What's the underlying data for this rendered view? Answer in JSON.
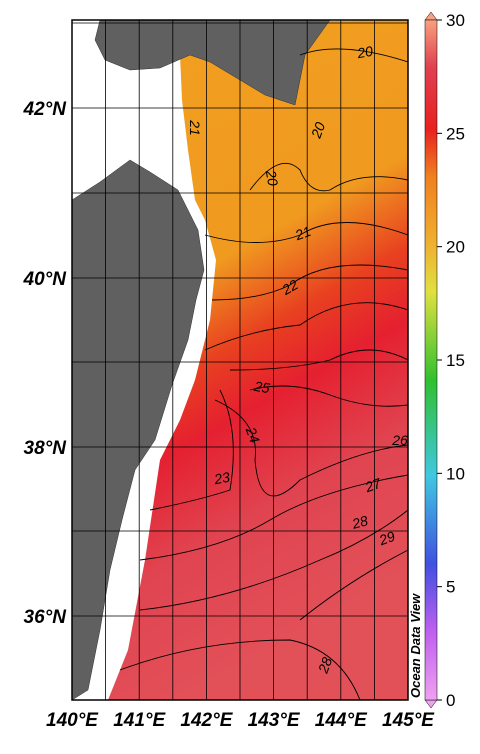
{
  "map": {
    "lon_labels": [
      "140°E",
      "141°E",
      "142°E",
      "143°E",
      "144°E",
      "145°E"
    ],
    "lat_labels": [
      "42°N",
      "40°N",
      "38°N",
      "36°N"
    ],
    "colorbar": {
      "range": [
        0,
        30
      ],
      "ticks": [
        0,
        5,
        10,
        15,
        20,
        25,
        30
      ]
    },
    "contour_labels": [
      20,
      20,
      20,
      21,
      21,
      22,
      25,
      24,
      23,
      26,
      27,
      28,
      29,
      28
    ],
    "watermark": "Ocean Data View"
  }
}
